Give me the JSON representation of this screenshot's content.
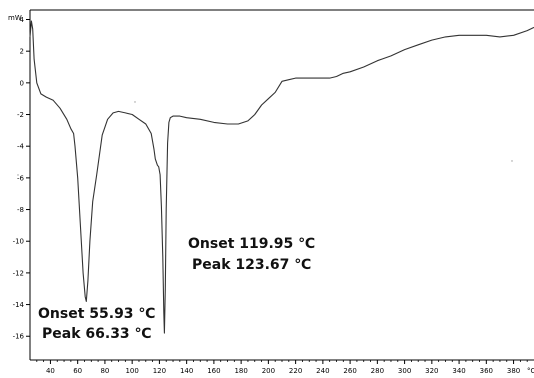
{
  "chart_data": {
    "type": "line",
    "title": "",
    "xlabel": "",
    "ylabel": "",
    "y_unit_label": "mW",
    "x_unit_label": "°C",
    "xlim": [
      25,
      395
    ],
    "ylim": [
      -17.5,
      4.6
    ],
    "x_ticks": [
      40,
      60,
      80,
      100,
      120,
      140,
      160,
      180,
      200,
      220,
      240,
      260,
      280,
      300,
      320,
      340,
      360,
      380
    ],
    "y_ticks": [
      4,
      2,
      0,
      -2,
      -4,
      -6,
      -8,
      -10,
      -12,
      -14,
      -16
    ],
    "grid": false,
    "series": [
      {
        "color": "#333333",
        "x": [
          25,
          26,
          27,
          28,
          30,
          33,
          37,
          42,
          47,
          52,
          55,
          57,
          58,
          60,
          62,
          64,
          65.5,
          66.3,
          67.5,
          69,
          71,
          74,
          78,
          82,
          86,
          90,
          95,
          100,
          105,
          110,
          114,
          116,
          117,
          118.5,
          119.5,
          120.5,
          121.5,
          122.5,
          123.2,
          123.67,
          124.3,
          125,
          126,
          127,
          128,
          130,
          135,
          140,
          150,
          160,
          170,
          178,
          185,
          190,
          195,
          200,
          205,
          210,
          215,
          220,
          230,
          240,
          245,
          250,
          255,
          260,
          270,
          280,
          290,
          300,
          310,
          320,
          330,
          340,
          350,
          360,
          370,
          380,
          390,
          395
        ],
        "y": [
          2.9,
          3.9,
          3.4,
          1.5,
          0.0,
          -0.7,
          -0.9,
          -1.1,
          -1.6,
          -2.3,
          -2.9,
          -3.2,
          -4.0,
          -6.0,
          -9.0,
          -12.0,
          -13.5,
          -13.8,
          -12.5,
          -10.0,
          -7.5,
          -5.8,
          -3.3,
          -2.3,
          -1.9,
          -1.8,
          -1.9,
          -2.0,
          -2.3,
          -2.6,
          -3.2,
          -4.2,
          -4.8,
          -5.2,
          -5.3,
          -5.8,
          -7.8,
          -11.0,
          -14.5,
          -15.8,
          -13.0,
          -8.0,
          -3.8,
          -2.5,
          -2.2,
          -2.1,
          -2.1,
          -2.2,
          -2.3,
          -2.5,
          -2.6,
          -2.6,
          -2.4,
          -2.0,
          -1.4,
          -1.0,
          -0.6,
          0.1,
          0.2,
          0.3,
          0.3,
          0.3,
          0.3,
          0.4,
          0.6,
          0.7,
          1.0,
          1.4,
          1.7,
          2.1,
          2.4,
          2.7,
          2.9,
          3.0,
          3.0,
          3.0,
          2.9,
          3.0,
          3.3,
          3.5
        ]
      }
    ],
    "annotations": [
      {
        "line1": "Onset 55.93 ℃",
        "line2": "Peak 66.33 ℃"
      },
      {
        "line1": "Onset 119.95 ℃",
        "line2": "Peak 123.67 ℃"
      }
    ]
  }
}
